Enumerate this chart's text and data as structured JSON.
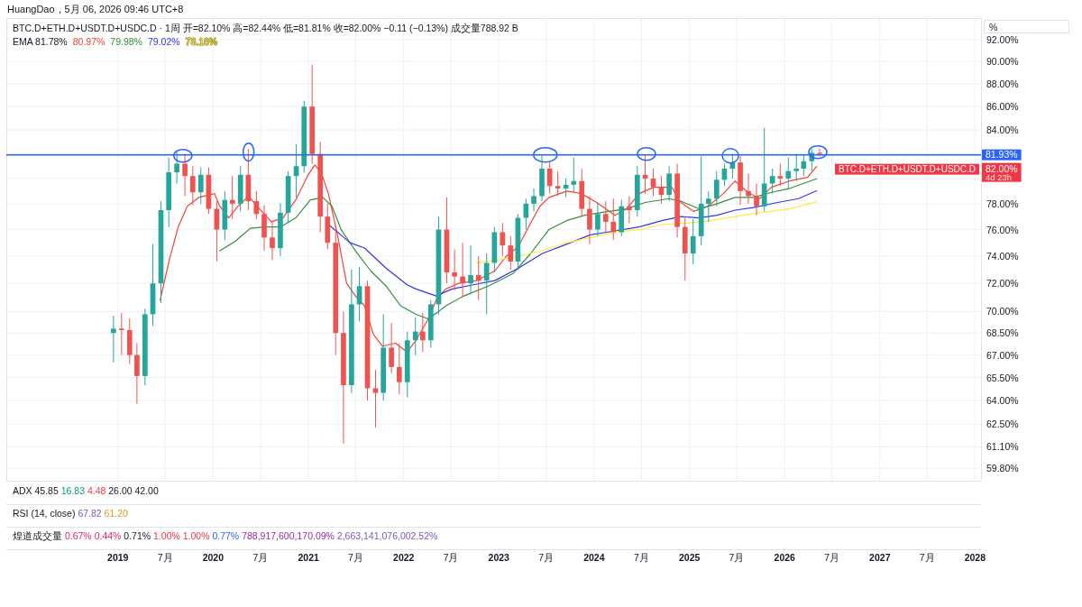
{
  "chart_data": {
    "type": "candlestick",
    "title": "HuangDao，5月 06, 2026 09:46 UTC+8",
    "subtitle": "BTC.D+ETH.D+USDT.D+USDC.D · 1周 开=82.10% 高=82.44% 低=81.81% 收=82.00% −0.11 (−0.13%) 成交量788.92 B",
    "ylabel": "%",
    "annotations": [
      "EMA 81.78%",
      "BTC.D+ETH.D+USDT.D+USDC.D",
      "82.00%",
      "4d 23h",
      "ADX 45.85 16.83 4.48 26.00 42.00",
      "RSI (14, close) 67.82 61.20",
      "煌道成交量 0.67% 0.44% 0.71% 1.00% 1.00% 0.77% 788,917,600,170.09% 2,663,141,076,002.52%",
      "81.93%"
    ],
    "x": [
      "2018-12-15",
      "2019-01-15",
      "2019-02-15",
      "2019-03-15",
      "2019-04-15",
      "2019-05-15",
      "2019-06-15",
      "2019-07-15",
      "2019-08-15",
      "2019-09-15",
      "2019-10-15",
      "2019-11-15",
      "2019-12-15",
      "2020-01-15",
      "2020-02-15",
      "2020-03-15",
      "2020-04-15",
      "2020-05-15",
      "2020-06-15",
      "2020-07-15",
      "2020-08-15",
      "2020-09-15",
      "2020-10-15",
      "2020-11-15",
      "2020-12-15",
      "2021-01-15",
      "2021-02-15",
      "2021-03-15",
      "2021-04-15",
      "2021-05-15",
      "2021-06-15",
      "2021-07-15",
      "2021-08-15",
      "2021-09-15",
      "2021-10-15",
      "2021-11-15",
      "2021-12-15",
      "2022-01-15",
      "2022-02-15",
      "2022-03-15",
      "2022-04-15",
      "2022-05-15",
      "2022-06-15",
      "2022-07-15",
      "2022-08-15",
      "2022-09-15",
      "2022-10-15",
      "2022-11-15",
      "2022-12-15",
      "2023-01-15",
      "2023-02-15",
      "2023-03-15",
      "2023-04-15",
      "2023-05-15",
      "2023-06-15",
      "2023-07-15",
      "2023-08-15",
      "2023-09-15",
      "2023-10-15",
      "2023-11-15",
      "2023-12-15",
      "2024-01-15",
      "2024-02-15",
      "2024-03-15",
      "2024-04-15",
      "2024-05-15",
      "2024-06-15",
      "2024-07-15",
      "2024-08-15",
      "2024-09-15",
      "2024-10-15",
      "2024-11-15",
      "2024-12-15",
      "2025-01-15",
      "2025-02-15",
      "2025-03-15",
      "2025-04-15",
      "2025-05-15",
      "2025-06-15",
      "2025-07-15",
      "2025-08-15",
      "2025-09-15",
      "2025-10-15",
      "2025-11-15",
      "2025-12-15",
      "2026-01-15",
      "2026-02-15",
      "2026-03-15",
      "2026-04-15",
      "2026-05-15"
    ],
    "ohlc": [
      [
        68.5,
        69.7,
        66.5,
        68.8
      ],
      [
        68.8,
        69.9,
        67.0,
        68.7
      ],
      [
        68.7,
        69.5,
        66.4,
        67.0
      ],
      [
        67.0,
        67.8,
        63.8,
        65.6
      ],
      [
        65.6,
        70.2,
        65.0,
        69.8
      ],
      [
        69.8,
        74.9,
        69.0,
        72.0
      ],
      [
        72.0,
        78.2,
        70.6,
        77.5
      ],
      [
        77.5,
        81.7,
        76.2,
        80.5
      ],
      [
        80.5,
        82.2,
        79.6,
        81.2
      ],
      [
        81.2,
        82.0,
        78.6,
        80.2
      ],
      [
        80.2,
        81.0,
        77.9,
        78.9
      ],
      [
        78.9,
        80.9,
        78.0,
        80.3
      ],
      [
        80.3,
        80.9,
        77.2,
        77.6
      ],
      [
        77.6,
        78.2,
        73.6,
        76.0
      ],
      [
        76.0,
        79.0,
        75.2,
        78.3
      ],
      [
        78.3,
        80.2,
        76.8,
        78.0
      ],
      [
        78.0,
        81.0,
        77.4,
        80.3
      ],
      [
        80.3,
        82.4,
        77.5,
        78.2
      ],
      [
        78.2,
        79.0,
        76.8,
        77.2
      ],
      [
        77.2,
        77.9,
        74.4,
        75.4
      ],
      [
        75.4,
        76.6,
        73.7,
        74.6
      ],
      [
        74.6,
        78.0,
        74.0,
        77.3
      ],
      [
        77.3,
        80.6,
        76.5,
        80.2
      ],
      [
        80.2,
        82.8,
        78.5,
        81.0
      ],
      [
        81.0,
        86.5,
        80.5,
        86.0
      ],
      [
        86.0,
        89.7,
        81.2,
        82.0
      ],
      [
        82.0,
        83.0,
        75.8,
        77.0
      ],
      [
        77.0,
        78.0,
        74.5,
        75.0
      ],
      [
        75.0,
        76.0,
        67.0,
        68.5
      ],
      [
        68.5,
        70.0,
        61.3,
        65.0
      ],
      [
        65.0,
        73.0,
        64.5,
        70.5
      ],
      [
        70.5,
        73.2,
        69.3,
        71.8
      ],
      [
        71.8,
        72.2,
        64.0,
        64.8
      ],
      [
        64.8,
        66.0,
        62.3,
        64.5
      ],
      [
        64.5,
        69.8,
        64.0,
        67.5
      ],
      [
        67.5,
        69.2,
        65.8,
        66.2
      ],
      [
        66.2,
        67.8,
        64.4,
        65.2
      ],
      [
        65.2,
        68.6,
        64.2,
        68.0
      ],
      [
        68.0,
        69.6,
        67.0,
        68.6
      ],
      [
        68.6,
        69.9,
        67.2,
        68.0
      ],
      [
        68.0,
        70.8,
        67.5,
        70.5
      ],
      [
        70.5,
        77.0,
        69.8,
        76.0
      ],
      [
        76.0,
        78.5,
        72.0,
        72.8
      ],
      [
        72.8,
        74.5,
        71.5,
        72.5
      ],
      [
        72.5,
        75.0,
        71.0,
        72.0
      ],
      [
        72.0,
        74.8,
        71.2,
        72.6
      ],
      [
        72.6,
        74.0,
        70.8,
        72.2
      ],
      [
        72.2,
        74.2,
        69.8,
        73.5
      ],
      [
        73.5,
        76.2,
        72.8,
        75.8
      ],
      [
        75.8,
        76.5,
        74.0,
        74.8
      ],
      [
        74.8,
        75.5,
        73.0,
        73.6
      ],
      [
        73.6,
        77.2,
        73.0,
        76.9
      ],
      [
        76.9,
        78.4,
        76.0,
        78.0
      ],
      [
        78.0,
        79.2,
        77.4,
        78.6
      ],
      [
        78.6,
        81.9,
        78.2,
        80.8
      ],
      [
        80.8,
        81.4,
        78.8,
        79.4
      ],
      [
        79.4,
        80.6,
        78.6,
        79.2
      ],
      [
        79.2,
        80.0,
        78.5,
        79.5
      ],
      [
        79.5,
        81.7,
        78.9,
        79.8
      ],
      [
        79.8,
        80.8,
        77.0,
        77.6
      ],
      [
        77.6,
        78.6,
        74.9,
        76.0
      ],
      [
        76.0,
        78.0,
        75.5,
        77.2
      ],
      [
        77.2,
        78.2,
        75.8,
        76.6
      ],
      [
        76.6,
        78.4,
        75.2,
        75.8
      ],
      [
        75.8,
        78.3,
        75.5,
        77.8
      ],
      [
        77.8,
        78.6,
        76.5,
        77.5
      ],
      [
        77.5,
        81.0,
        77.0,
        80.3
      ],
      [
        80.3,
        81.9,
        78.8,
        80.0
      ],
      [
        80.0,
        80.8,
        78.6,
        79.3
      ],
      [
        79.3,
        80.2,
        78.0,
        78.7
      ],
      [
        78.7,
        81.0,
        78.2,
        80.4
      ],
      [
        80.4,
        81.2,
        75.4,
        76.2
      ],
      [
        76.2,
        77.0,
        72.2,
        74.2
      ],
      [
        74.2,
        76.8,
        73.4,
        75.5
      ],
      [
        75.5,
        81.8,
        74.8,
        78.0
      ],
      [
        78.0,
        79.0,
        76.6,
        78.4
      ],
      [
        78.4,
        80.6,
        77.8,
        79.9
      ],
      [
        79.9,
        81.2,
        79.4,
        80.8
      ],
      [
        80.8,
        82.0,
        80.0,
        81.3
      ],
      [
        81.3,
        81.8,
        77.9,
        79.0
      ],
      [
        79.0,
        80.4,
        78.0,
        78.6
      ],
      [
        78.6,
        79.6,
        77.1,
        77.8
      ],
      [
        77.8,
        84.2,
        77.4,
        79.6
      ],
      [
        79.6,
        80.8,
        78.8,
        80.2
      ],
      [
        80.2,
        81.2,
        79.4,
        80.0
      ],
      [
        80.0,
        81.7,
        79.2,
        80.6
      ],
      [
        80.6,
        82.0,
        79.8,
        80.8
      ],
      [
        80.8,
        81.9,
        80.2,
        81.4
      ],
      [
        81.4,
        82.4,
        80.6,
        82.1
      ],
      [
        82.1,
        82.44,
        81.81,
        82.0
      ]
    ],
    "colors": [
      "#26a69a",
      "#ef5350",
      "#ef5350",
      "#ef5350",
      "#26a69a",
      "#26a69a",
      "#26a69a",
      "#26a69a",
      "#26a69a",
      "#ef5350",
      "#ef5350",
      "#26a69a",
      "#ef5350",
      "#ef5350",
      "#26a69a",
      "#ef5350",
      "#26a69a",
      "#ef5350",
      "#ef5350",
      "#ef5350",
      "#ef5350",
      "#26a69a",
      "#26a69a",
      "#26a69a",
      "#26a69a",
      "#ef5350",
      "#ef5350",
      "#ef5350",
      "#ef5350",
      "#ef5350",
      "#26a69a",
      "#26a69a",
      "#ef5350",
      "#ef5350",
      "#26a69a",
      "#ef5350",
      "#ef5350",
      "#26a69a",
      "#26a69a",
      "#ef5350",
      "#26a69a",
      "#26a69a",
      "#ef5350",
      "#ef5350",
      "#ef5350",
      "#26a69a",
      "#ef5350",
      "#26a69a",
      "#26a69a",
      "#ef5350",
      "#ef5350",
      "#26a69a",
      "#26a69a",
      "#26a69a",
      "#26a69a",
      "#ef5350",
      "#ef5350",
      "#26a69a",
      "#26a69a",
      "#ef5350",
      "#ef5350",
      "#26a69a",
      "#ef5350",
      "#ef5350",
      "#26a69a",
      "#ef5350",
      "#26a69a",
      "#ef5350",
      "#ef5350",
      "#ef5350",
      "#26a69a",
      "#ef5350",
      "#ef5350",
      "#26a69a",
      "#26a69a",
      "#26a69a",
      "#26a69a",
      "#26a69a",
      "#26a69a",
      "#ef5350",
      "#ef5350",
      "#ef5350",
      "#26a69a",
      "#26a69a",
      "#ef5350",
      "#26a69a",
      "#26a69a",
      "#26a69a",
      "#26a69a",
      "#ef5350"
    ],
    "series": [
      {
        "type": "line",
        "name": "80.97%",
        "color": "#f44336",
        "x": [
          "2019-06-12",
          "2019-07-17",
          "2019-08-20",
          "2019-09-24",
          "2019-11-08",
          "2020-01-06",
          "2020-01-27",
          "2020-03-01",
          "2020-04-05",
          "2020-05-16",
          "2020-06-27",
          "2020-08-11",
          "2020-09-25",
          "2020-11-13",
          "2020-12-28",
          "2021-01-25",
          "2021-02-19",
          "2021-03-18",
          "2021-04-22",
          "2021-05-27",
          "2021-06-30",
          "2021-08-04",
          "2021-09-07",
          "2021-10-12",
          "2021-11-30",
          "2022-01-14",
          "2022-02-17",
          "2022-04-03",
          "2022-05-08",
          "2022-06-12",
          "2022-07-30",
          "2022-10-07",
          "2022-12-16",
          "2023-01-30",
          "2023-03-16",
          "2023-05-03",
          "2023-06-07",
          "2023-07-12",
          "2023-09-19",
          "2023-11-13",
          "2024-01-11",
          "2024-03-21",
          "2024-05-05",
          "2024-06-22",
          "2024-08-17",
          "2024-10-25",
          "2024-11-29",
          "2025-01-17",
          "2025-03-13",
          "2025-05-11",
          "2025-06-25",
          "2025-08-13",
          "2025-09-27",
          "2025-11-11",
          "2026-01-19",
          "2026-03-30",
          "2026-05-03"
        ],
        "values": [
          70.8,
          73.7,
          76.2,
          77.8,
          78.5,
          78.8,
          77.8,
          76.9,
          77.8,
          78.6,
          77.6,
          76.6,
          76.9,
          78.3,
          80.2,
          81.1,
          80.5,
          78.8,
          75.6,
          72.0,
          71.1,
          70.4,
          68.4,
          67.6,
          67.8,
          67.2,
          68.0,
          69.4,
          70.9,
          71.6,
          72.0,
          72.2,
          72.9,
          74.0,
          74.7,
          76.5,
          77.8,
          78.5,
          79.0,
          78.8,
          78.1,
          77.1,
          77.6,
          78.8,
          79.3,
          79.3,
          78.1,
          77.4,
          77.8,
          78.8,
          79.8,
          78.9,
          78.4,
          79.3,
          79.8,
          80.1,
          80.97
        ]
      },
      {
        "type": "line",
        "name": "79.98%",
        "color": "#388e3c",
        "x": [
          "2020-01-27",
          "2020-03-25",
          "2020-05-23",
          "2020-07-18",
          "2020-09-15",
          "2020-11-13",
          "2021-01-08",
          "2021-02-25",
          "2021-04-01",
          "2021-05-06",
          "2021-06-30",
          "2021-08-28",
          "2021-10-26",
          "2021-12-20",
          "2022-02-17",
          "2022-04-03",
          "2022-05-08",
          "2022-06-12",
          "2022-08-20",
          "2022-11-21",
          "2023-02-23",
          "2023-05-03",
          "2023-07-12",
          "2023-09-19",
          "2023-11-27",
          "2024-02-25",
          "2024-05-05",
          "2024-07-15",
          "2024-10-14",
          "2024-11-29",
          "2025-02-07",
          "2025-04-17",
          "2025-06-25",
          "2025-09-03",
          "2025-11-11",
          "2026-01-19",
          "2026-05-03"
        ],
        "values": [
          74.4,
          75.1,
          76.1,
          76.2,
          76.2,
          76.9,
          78.3,
          78.5,
          77.8,
          76.0,
          74.4,
          72.9,
          71.8,
          70.4,
          69.8,
          69.5,
          69.9,
          70.4,
          71.1,
          71.8,
          72.7,
          74.2,
          76.0,
          76.7,
          77.1,
          77.4,
          77.6,
          78.1,
          78.4,
          78.2,
          77.6,
          78.0,
          78.5,
          78.5,
          78.9,
          79.2,
          79.98
        ]
      },
      {
        "type": "line",
        "name": "79.02%",
        "color": "#3535e8",
        "x": [
          "2021-03-18",
          "2021-06-09",
          "2021-08-04",
          "2021-10-26",
          "2022-01-14",
          "2022-02-17",
          "2022-05-05",
          "2022-07-06",
          "2022-09-24",
          "2022-12-16",
          "2023-03-16",
          "2023-06-17",
          "2023-09-19",
          "2023-12-18",
          "2024-03-21",
          "2024-06-22",
          "2024-09-20",
          "2024-11-29",
          "2025-02-07",
          "2025-04-17",
          "2025-06-25",
          "2025-09-03",
          "2025-12-05",
          "2026-02-23",
          "2026-05-03"
        ],
        "values": [
          76.4,
          75.0,
          74.6,
          73.1,
          71.9,
          71.6,
          71.1,
          71.6,
          71.9,
          72.2,
          73.1,
          74.2,
          74.9,
          75.6,
          75.9,
          76.2,
          76.7,
          77.0,
          76.9,
          77.1,
          77.5,
          77.7,
          78.1,
          78.4,
          79.02
        ]
      },
      {
        "type": "line",
        "name": "78.16%",
        "color": "#ffeb3b",
        "x": [
          "2022-10-07",
          "2022-12-26",
          "2023-03-16",
          "2023-06-17",
          "2023-09-19",
          "2023-12-18",
          "2024-03-21",
          "2024-06-22",
          "2024-09-20",
          "2024-12-24",
          "2025-03-27",
          "2025-06-25",
          "2025-09-27",
          "2026-01-19",
          "2026-05-03"
        ],
        "values": [
          73.5,
          73.7,
          74.0,
          74.4,
          75.0,
          75.4,
          75.8,
          76.0,
          76.4,
          76.5,
          76.7,
          77.0,
          77.3,
          77.6,
          78.16
        ]
      }
    ],
    "xlim": [
      "2017-10-30",
      "2028-01-24"
    ],
    "xticks": [
      {
        "value": "2019",
        "label": "2019"
      },
      {
        "value": "2019-07",
        "label": "7月"
      },
      {
        "value": "2020",
        "label": "2020"
      },
      {
        "value": "2020-07",
        "label": "7月"
      },
      {
        "value": "2021",
        "label": "2021"
      },
      {
        "value": "2021-07",
        "label": "7月"
      },
      {
        "value": "2022",
        "label": "2022"
      },
      {
        "value": "2022-07",
        "label": "7月"
      },
      {
        "value": "2023",
        "label": "2023"
      },
      {
        "value": "2023-07",
        "label": "7月"
      },
      {
        "value": "2024",
        "label": "2024"
      },
      {
        "value": "2024-07",
        "label": "7月"
      },
      {
        "value": "2025",
        "label": "2025"
      },
      {
        "value": "2025-07",
        "label": "7月"
      },
      {
        "value": "2026",
        "label": "2026"
      },
      {
        "value": "2026-07",
        "label": "7月"
      },
      {
        "value": "2027",
        "label": "2027"
      },
      {
        "value": "2027-07",
        "label": "7月"
      },
      {
        "value": "2028",
        "label": "2028"
      }
    ],
    "ylim": [
      59.05,
      94.0
    ],
    "yticks": [
      {
        "value": 92,
        "label": "92.00%"
      },
      {
        "value": 90,
        "label": "90.00%"
      },
      {
        "value": 88,
        "label": "88.00%"
      },
      {
        "value": 86,
        "label": "86.00%"
      },
      {
        "value": 84,
        "label": "84.00%"
      },
      {
        "value": 82,
        "label": null
      },
      {
        "value": 80,
        "label": null
      },
      {
        "value": 78,
        "label": "78.00%"
      },
      {
        "value": 76,
        "label": "76.00%"
      },
      {
        "value": 74,
        "label": "74.00%"
      },
      {
        "value": 72,
        "label": "72.00%"
      },
      {
        "value": 70,
        "label": "70.00%"
      },
      {
        "value": 68.5,
        "label": "68.50%"
      },
      {
        "value": 67,
        "label": "67.00%"
      },
      {
        "value": 65.5,
        "label": "65.50%"
      },
      {
        "value": 64,
        "label": "64.00%"
      },
      {
        "value": 62.5,
        "label": "62.50%"
      },
      {
        "value": 61.1,
        "label": "61.10%"
      },
      {
        "value": 59.8,
        "label": "59.80%"
      }
    ],
    "log": "y",
    "grid": true,
    "legend": "top left",
    "line_style": "solid",
    "ref_lines": [
      {
        "axis": "y",
        "value": 81.93,
        "color": "#2962ff"
      }
    ]
  }
}
